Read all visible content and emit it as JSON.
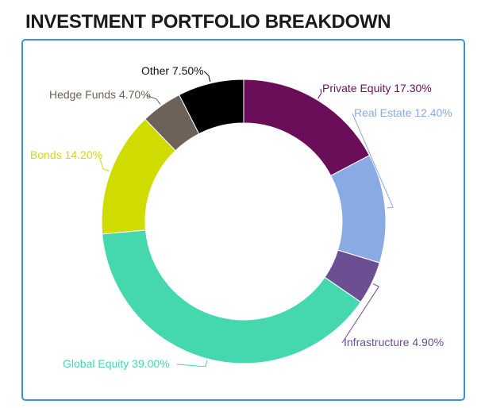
{
  "title": "INVESTMENT PORTFOLIO BREAKDOWN",
  "chart_data": {
    "type": "pie",
    "donut": true,
    "start_angle_deg": 0,
    "direction": "clockwise",
    "slices": [
      {
        "name": "Private Equity",
        "value": 17.3,
        "label": "Private Equity 17.30%",
        "color": "#6b0e59"
      },
      {
        "name": "Real Estate",
        "value": 12.4,
        "label": "Real Estate 12.40%",
        "color": "#8aaae3"
      },
      {
        "name": "Infrastructure",
        "value": 4.9,
        "label": "Infrastructure 4.90%",
        "color": "#6c4f92"
      },
      {
        "name": "Global Equity",
        "value": 39.0,
        "label": "Global Equity 39.00%",
        "color": "#45d8ae"
      },
      {
        "name": "Bonds",
        "value": 14.2,
        "label": "Bonds 14.20%",
        "color": "#d0dc00"
      },
      {
        "name": "Hedge Funds",
        "value": 4.7,
        "label": "Hedge Funds 4.70%",
        "color": "#6d6158"
      },
      {
        "name": "Other",
        "value": 7.5,
        "label": "Other 7.50%",
        "color": "#000000"
      }
    ]
  }
}
